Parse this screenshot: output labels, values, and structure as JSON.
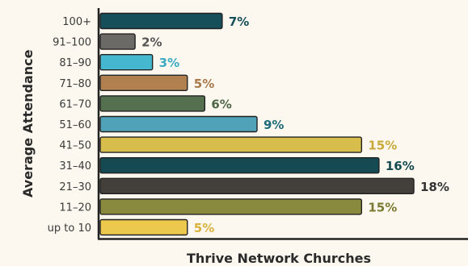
{
  "chart_data": {
    "type": "bar",
    "orientation": "horizontal",
    "title": "",
    "xlabel": "Thrive Network Churches",
    "ylabel": "Average Attendance",
    "categories": [
      "100+",
      "91–100",
      "81–90",
      "71–80",
      "61–70",
      "51–60",
      "41–50",
      "31–40",
      "21–30",
      "11–20",
      "up to 10"
    ],
    "values": [
      7,
      2,
      3,
      5,
      6,
      9,
      15,
      16,
      18,
      15,
      5
    ],
    "data_labels": [
      "7%",
      "2%",
      "3%",
      "5%",
      "6%",
      "9%",
      "15%",
      "16%",
      "18%",
      "15%",
      "5%"
    ],
    "colors": [
      "#164e5a",
      "#6b6a66",
      "#45b8cf",
      "#b0804f",
      "#54704e",
      "#4fa2b8",
      "#d7bd4c",
      "#154a52",
      "#433f3a",
      "#8a8a3e",
      "#ecc84d"
    ],
    "label_colors": [
      "#164e5a",
      "#555555",
      "#3aaac3",
      "#a8784a",
      "#4c6646",
      "#1f6a7a",
      "#c9a93a",
      "#154a52",
      "#333333",
      "#7a7a32",
      "#d9b13c"
    ],
    "xlim": [
      0,
      18
    ],
    "grid": false,
    "legend": "none"
  }
}
